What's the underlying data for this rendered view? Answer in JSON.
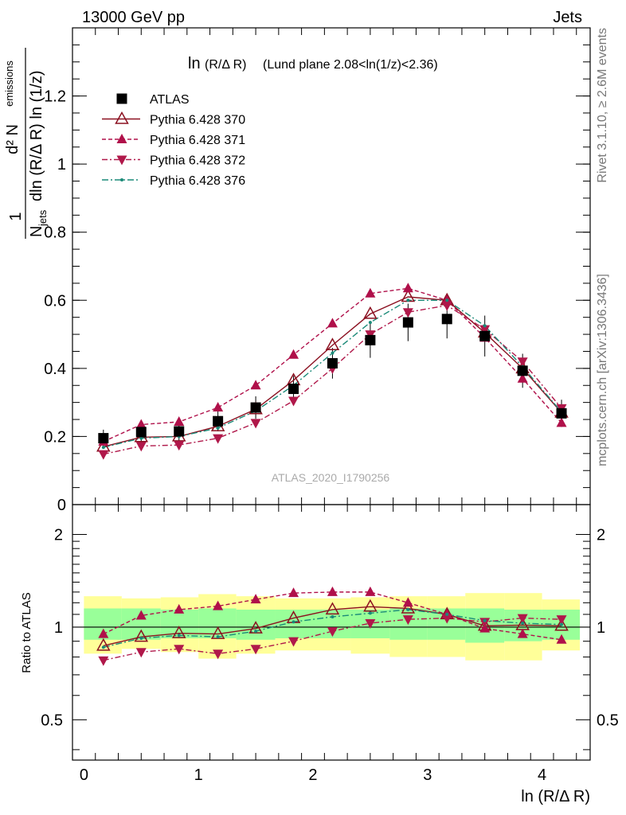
{
  "header": {
    "left": "13000 GeV pp",
    "right": "Jets"
  },
  "side_labels": {
    "top": "Rivet 3.1.10, ≥ 2.6M events",
    "bottom": "mcplots.cern.ch [arXiv:1306.3436]"
  },
  "plot_title_prefix": "ln",
  "plot_title_small": "(R/Δ R)",
  "plot_title_rest": "(Lund plane 2.08<ln(1/z)<2.36)",
  "watermark": "ATLAS_2020_I1790256",
  "ylabel_main": "1/N_jets d²N_emissions / dln (R/Δ R) ln (1/z)",
  "ylabel_ratio": "Ratio to ATLAS",
  "xlabel": "ln (R/Δ R)",
  "colors": {
    "atlas": "#000000",
    "py370": "#8b1020",
    "py371": "#b0104a",
    "py372": "#b0184a",
    "py376": "#1a8a78",
    "band_inner": "#99ff99",
    "band_outer": "#ffff99"
  },
  "chart_data": [
    {
      "type": "scatter",
      "panel": "main",
      "x": [
        0.17,
        0.5,
        0.83,
        1.17,
        1.5,
        1.83,
        2.17,
        2.5,
        2.83,
        3.17,
        3.5,
        3.83,
        4.17
      ],
      "xlim": [
        -0.1,
        4.42
      ],
      "ylim": [
        0,
        1.4
      ],
      "yticks": [
        0,
        0.2,
        0.4,
        0.6,
        0.8,
        1,
        1.2
      ],
      "xticks": [
        0,
        1,
        2,
        3,
        4
      ],
      "legend_position": "top-left",
      "series": [
        {
          "name": "ATLAS",
          "values": [
            0.195,
            0.213,
            0.215,
            0.245,
            0.285,
            0.34,
            0.415,
            0.483,
            0.535,
            0.545,
            0.495,
            0.393,
            0.268
          ],
          "err": [
            0.025,
            0.027,
            0.028,
            0.03,
            0.033,
            0.038,
            0.045,
            0.052,
            0.055,
            0.057,
            0.06,
            0.05,
            0.04
          ]
        },
        {
          "name": "Pythia 6.428 370",
          "values": [
            0.17,
            0.198,
            0.2,
            0.23,
            0.28,
            0.365,
            0.468,
            0.56,
            0.61,
            0.6,
            0.505,
            0.4,
            0.27
          ]
        },
        {
          "name": "Pythia 6.428 371",
          "values": [
            0.185,
            0.235,
            0.243,
            0.285,
            0.35,
            0.44,
            0.532,
            0.62,
            0.635,
            0.6,
            0.49,
            0.37,
            0.24
          ]
        },
        {
          "name": "Pythia 6.428 372",
          "values": [
            0.148,
            0.172,
            0.175,
            0.195,
            0.24,
            0.305,
            0.4,
            0.5,
            0.565,
            0.585,
            0.515,
            0.42,
            0.283
          ]
        },
        {
          "name": "Pythia 6.428 376",
          "values": [
            0.168,
            0.195,
            0.2,
            0.225,
            0.275,
            0.35,
            0.445,
            0.535,
            0.6,
            0.6,
            0.525,
            0.405,
            0.272
          ]
        }
      ]
    },
    {
      "type": "line",
      "panel": "ratio",
      "bin_edges": [
        0,
        0.33,
        0.67,
        1.0,
        1.33,
        1.67,
        2.0,
        2.33,
        2.67,
        3.0,
        3.33,
        3.67,
        4.0,
        4.33
      ],
      "x": [
        0.17,
        0.5,
        0.83,
        1.17,
        1.5,
        1.83,
        2.17,
        2.5,
        2.83,
        3.17,
        3.5,
        3.83,
        4.17
      ],
      "ylim": [
        0.37,
        2.5
      ],
      "yticks": [
        0.5,
        1,
        2
      ],
      "band_inner_lo": [
        0.91,
        0.91,
        0.92,
        0.92,
        0.91,
        0.92,
        0.92,
        0.92,
        0.91,
        0.91,
        0.89,
        0.9,
        0.91
      ],
      "band_inner_hi": [
        1.15,
        1.15,
        1.14,
        1.15,
        1.14,
        1.14,
        1.14,
        1.14,
        1.15,
        1.15,
        1.15,
        1.14,
        1.14
      ],
      "band_outer_lo": [
        0.82,
        0.85,
        0.83,
        0.79,
        0.82,
        0.84,
        0.84,
        0.82,
        0.8,
        0.8,
        0.78,
        0.78,
        0.84
      ],
      "band_outer_hi": [
        1.26,
        1.24,
        1.25,
        1.28,
        1.26,
        1.24,
        1.24,
        1.25,
        1.26,
        1.26,
        1.29,
        1.29,
        1.23
      ],
      "series": [
        {
          "name": "Pythia 6.428 370",
          "values": [
            0.87,
            0.93,
            0.955,
            0.95,
            0.99,
            1.07,
            1.14,
            1.165,
            1.15,
            1.1,
            1.01,
            1.015,
            1.01
          ]
        },
        {
          "name": "Pythia 6.428 371",
          "values": [
            0.95,
            1.09,
            1.14,
            1.17,
            1.23,
            1.29,
            1.3,
            1.3,
            1.2,
            1.1,
            0.99,
            0.95,
            0.91
          ]
        },
        {
          "name": "Pythia 6.428 372",
          "values": [
            0.78,
            0.83,
            0.85,
            0.82,
            0.85,
            0.9,
            0.97,
            1.03,
            1.06,
            1.07,
            1.04,
            1.07,
            1.06
          ]
        },
        {
          "name": "Pythia 6.428 376",
          "values": [
            0.86,
            0.92,
            0.94,
            0.93,
            0.97,
            1.04,
            1.08,
            1.11,
            1.14,
            1.1,
            1.05,
            1.03,
            1.02
          ]
        }
      ]
    }
  ]
}
